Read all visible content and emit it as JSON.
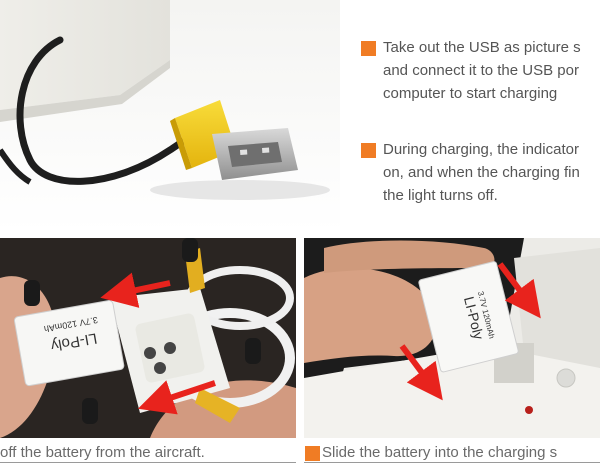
{
  "colors": {
    "bullet": "#f07c24",
    "arrow": "#e8231d",
    "usb_plug": "#f4cd1d",
    "text": "#555555"
  },
  "instructions": [
    {
      "lines": [
        "Take out the USB as picture s",
        "and connect it to the USB por",
        "computer to start charging"
      ]
    },
    {
      "lines": [
        "During charging, the indicator",
        "on, and when the charging fin",
        "the light turns off."
      ]
    }
  ],
  "photos": {
    "battery_label_left": {
      "brand": "LI-Poly",
      "spec": "3.7V 120mAh"
    },
    "battery_label_right": {
      "brand": "LI-Poly",
      "spec": "3.7V 120mAh"
    }
  },
  "captions": {
    "left": "off the battery from the aircraft.",
    "right": "Slide the battery into the charging s"
  }
}
